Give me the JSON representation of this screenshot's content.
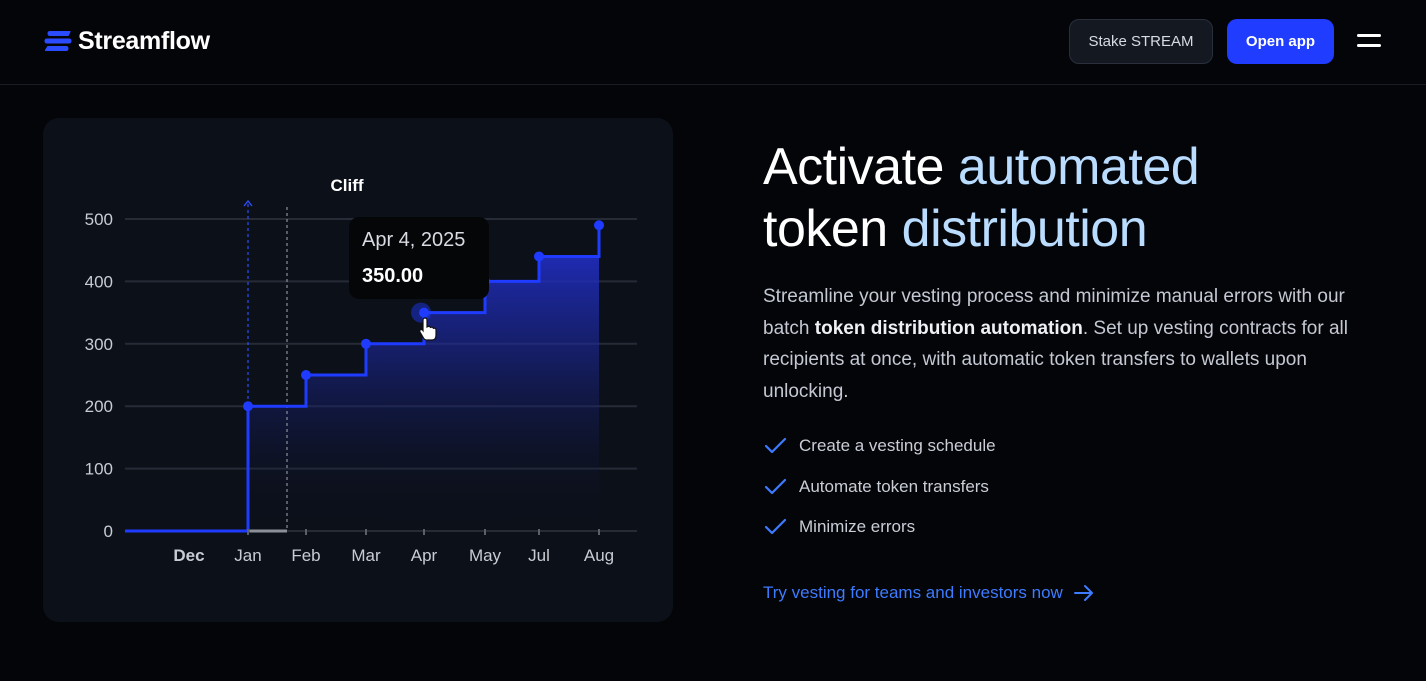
{
  "header": {
    "brand": "Streamflow",
    "stake_label": "Stake STREAM",
    "open_app_label": "Open app"
  },
  "hero": {
    "title_part1": "Activate ",
    "title_accent1": "automated",
    "title_part2": "token ",
    "title_accent2": "distribution",
    "description_part1": "Streamline your vesting process and minimize manual errors with our batch ",
    "description_bold": "token distribution automation",
    "description_part2": ". Set up vesting contracts for all recipients at once, with automatic token transfers to wallets upon unlocking.",
    "features": [
      {
        "label": "Create a vesting schedule",
        "icon": "check-icon"
      },
      {
        "label": "Automate token transfers",
        "icon": "check-icon"
      },
      {
        "label": "Minimize errors",
        "icon": "check-icon"
      }
    ],
    "cta_label": "Try vesting for teams and investors now",
    "cta_icon": "arrow-right-icon"
  },
  "tooltip": {
    "date": "Apr 4, 2025",
    "value": "350.00"
  },
  "colors": {
    "accent_blue": "#1f3cff",
    "heading_accent": "#b9dcff",
    "link_blue": "#3d7bff",
    "check_blue": "#3d7bff"
  },
  "chart_data": {
    "type": "area",
    "title": "Cliff",
    "x_tick_labels": [
      "Dec",
      "Jan",
      "Feb",
      "Mar",
      "Apr",
      "May",
      "Jul",
      "Aug"
    ],
    "y_tick_labels": [
      "0",
      "100",
      "200",
      "300",
      "400",
      "500"
    ],
    "ylim": [
      0,
      500
    ],
    "grid": true,
    "step_points": [
      {
        "x": "Jan",
        "y": 200
      },
      {
        "x": "Feb",
        "y": 250
      },
      {
        "x": "Mar",
        "y": 300
      },
      {
        "x": "Apr",
        "y": 350
      },
      {
        "x": "May",
        "y": 400
      },
      {
        "x": "Jul",
        "y": 440
      },
      {
        "x": "Aug",
        "y": 490
      }
    ],
    "highlight": {
      "x": "Apr",
      "y": 350
    }
  }
}
